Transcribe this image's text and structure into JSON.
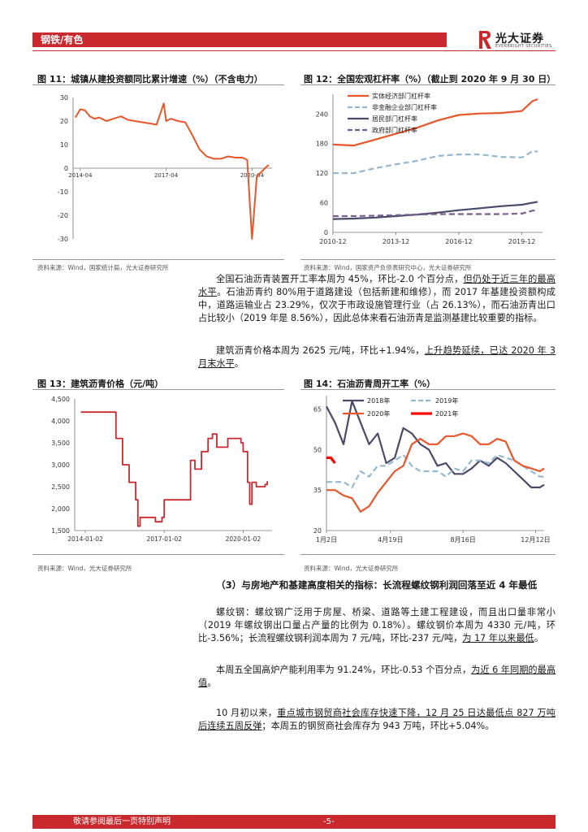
{
  "header": {
    "section_tag": "钢铁/有色",
    "logo_cn": "光大证券",
    "logo_en": "EVERBRIGHT SECURITIES",
    "accent_color": "#c9282d"
  },
  "fig11": {
    "title": "图 11：城镇从建投资额同比累计增速（%）（不含电力）",
    "source": "资料来源：Wind，国家统计局，光大证券研究所",
    "chart_data": {
      "type": "line",
      "xlabel": "",
      "ylabel": "",
      "ylim": [
        -30,
        30
      ],
      "yticks": [
        "30",
        "20",
        "10",
        "0",
        "-10",
        "-20",
        "-30"
      ],
      "xticks": [
        "2014-04",
        "2017-04",
        "2020-04"
      ],
      "grid": false,
      "series": [
        {
          "color": "#e8562a",
          "x": [
            "2014-02",
            "2014-04",
            "2014-06",
            "2014-08",
            "2014-10",
            "2014-12",
            "2015-03",
            "2015-06",
            "2015-09",
            "2015-12",
            "2016-03",
            "2016-06",
            "2016-09",
            "2016-12",
            "2017-03",
            "2017-04",
            "2017-06",
            "2017-09",
            "2017-12",
            "2018-03",
            "2018-06",
            "2018-09",
            "2018-12",
            "2019-03",
            "2019-06",
            "2019-09",
            "2019-12",
            "2020-02",
            "2020-04",
            "2020-06",
            "2020-08",
            "2020-10",
            "2020-11"
          ],
          "y": [
            21.5,
            25,
            24.5,
            22,
            21,
            21.5,
            20,
            21,
            22,
            20.5,
            20,
            19.5,
            19,
            18.5,
            27.5,
            20,
            21,
            20,
            19.5,
            14,
            8,
            5,
            4,
            4,
            5,
            4.5,
            4.5,
            3.5,
            -30,
            -3.5,
            -1.5,
            0.5,
            1.3
          ]
        }
      ]
    }
  },
  "fig12": {
    "title": "图 12：全国宏观杠杆率（%）（截止到 2020 年 9 月 30 日）",
    "source": "资料来源：Wind，国家资产负债表研究中心，光大证券研究所",
    "chart_data": {
      "type": "line",
      "ylim": [
        0,
        280
      ],
      "yticks": [
        "240",
        "180",
        "120",
        "60",
        "0"
      ],
      "xticks": [
        "2010-12",
        "2013-12",
        "2016-12",
        "2019-12"
      ],
      "legend_position": "top-left",
      "grid": false,
      "series": [
        {
          "name": "实体经济部门杠杆率",
          "color": "#e8562a",
          "dash": false,
          "x": [
            "2010-12",
            "2011-12",
            "2012-12",
            "2013-12",
            "2014-12",
            "2015-12",
            "2016-12",
            "2017-12",
            "2018-12",
            "2019-12",
            "2020-06",
            "2020-09"
          ],
          "y": [
            178,
            176,
            188,
            200,
            212,
            227,
            238,
            241,
            242,
            246,
            266,
            270
          ]
        },
        {
          "name": "非金融企业部门杠杆率",
          "color": "#95b8d0",
          "dash": true,
          "x": [
            "2010-12",
            "2011-12",
            "2012-12",
            "2013-12",
            "2014-12",
            "2015-12",
            "2016-12",
            "2017-12",
            "2018-12",
            "2019-12",
            "2020-06",
            "2020-09"
          ],
          "y": [
            120,
            120,
            130,
            138,
            145,
            155,
            158,
            158,
            153,
            152,
            164,
            164
          ]
        },
        {
          "name": "居民部门杠杆率",
          "color": "#4a4a6a",
          "dash": false,
          "x": [
            "2010-12",
            "2011-12",
            "2012-12",
            "2013-12",
            "2014-12",
            "2015-12",
            "2016-12",
            "2017-12",
            "2018-12",
            "2019-12",
            "2020-06",
            "2020-09"
          ],
          "y": [
            27,
            28,
            30,
            33,
            36,
            40,
            45,
            49,
            53,
            56,
            60,
            62
          ]
        },
        {
          "name": "政府部门杠杆率",
          "color": "#7a5d8e",
          "dash": true,
          "x": [
            "2010-12",
            "2011-12",
            "2012-12",
            "2013-12",
            "2014-12",
            "2015-12",
            "2016-12",
            "2017-12",
            "2018-12",
            "2019-12",
            "2020-06",
            "2020-09"
          ],
          "y": [
            33,
            33,
            34,
            35,
            36,
            37,
            37,
            37,
            37,
            38,
            44,
            45
          ]
        }
      ]
    }
  },
  "para1": {
    "t1": "全国石油沥青装置开工率本周为 45%，环比-2.0 个百分点，",
    "t1u": "但仍处于近三年的最高水平",
    "t2": "。石油沥青约 80%用于道路建设（包括新建和维修），而 2017 年基建投资额构成中，道路运输业占 23.29%，仅次于市政设施管理行业（占 26.13%），而石油沥青出口占比较小（2019 年是 8.56%），因此总体来看石油沥青是监测基建比较重要的指标。"
  },
  "para2": {
    "t1": "建筑沥青价格本周为 2625 元/吨，环比+1.94%，",
    "t1u": "上升趋势延续，已达 2020 年 3 月末水平",
    "t2": "。"
  },
  "fig13": {
    "title": "图 13：建筑沥青价格（元/吨）",
    "source": "资料来源：Wind，光大证券研究所",
    "chart_data": {
      "type": "line",
      "ylim": [
        1500,
        4500
      ],
      "yticks": [
        "4,500",
        "4,000",
        "3,500",
        "3,000",
        "2,500",
        "2,000",
        "1,500"
      ],
      "xticks": [
        "2014-01-02",
        "2017-01-02",
        "2020-01-02"
      ],
      "grid": false,
      "series": [
        {
          "color": "#c9282d",
          "x": [
            "2013-11",
            "2014-06",
            "2014-12",
            "2015-03",
            "2015-06",
            "2015-09",
            "2015-12",
            "2016-01",
            "2016-02",
            "2016-06",
            "2016-09",
            "2016-12",
            "2017-01",
            "2017-01",
            "2017-06",
            "2017-12",
            "2018-01",
            "2018-03",
            "2018-06",
            "2018-09",
            "2018-11",
            "2019-01",
            "2019-06",
            "2019-12",
            "2020-01",
            "2020-03",
            "2020-04",
            "2020-05",
            "2020-07",
            "2020-09",
            "2020-11",
            "2020-12"
          ],
          "y": [
            4200,
            4200,
            4200,
            3600,
            3000,
            2600,
            2200,
            1600,
            1800,
            1800,
            1700,
            1800,
            1800,
            2200,
            2200,
            2200,
            3100,
            2900,
            3300,
            3600,
            3700,
            3400,
            3600,
            3500,
            3300,
            2600,
            2100,
            2600,
            2500,
            2500,
            2550,
            2625
          ]
        }
      ]
    }
  },
  "fig14": {
    "title": "图 14：石油沥青周开工率（%）",
    "source": "资料来源：Wind，光大证券研究所",
    "chart_data": {
      "type": "line",
      "ylim": [
        20,
        70
      ],
      "yticks": [
        "65",
        "50",
        "35",
        "20"
      ],
      "xticks": [
        "1月2日",
        "4月19日",
        "8月16日",
        "12月12日"
      ],
      "legend_position": "top",
      "grid": false,
      "series": [
        {
          "name": "2018年",
          "color": "#4a4a6a",
          "dash": false,
          "x": [
            1,
            3,
            5,
            7,
            9,
            11,
            13,
            15,
            17,
            19,
            21,
            23,
            25,
            27,
            29,
            31,
            33,
            35,
            37,
            39,
            41,
            43,
            45,
            47,
            49,
            51,
            52
          ],
          "y": [
            66,
            60,
            52,
            68,
            60,
            52,
            56,
            45,
            47,
            58,
            56,
            52,
            50,
            44,
            45,
            41,
            41,
            43,
            46,
            44,
            47,
            45,
            42,
            39,
            36,
            36,
            37
          ]
        },
        {
          "name": "2019年",
          "color": "#95b8d0",
          "dash": true,
          "x": [
            1,
            3,
            5,
            7,
            9,
            11,
            13,
            15,
            17,
            19,
            21,
            23,
            25,
            27,
            29,
            31,
            33,
            35,
            37,
            39,
            41,
            43,
            45,
            47,
            49,
            51,
            52
          ],
          "y": [
            38,
            38,
            38,
            36,
            42,
            40,
            44,
            44,
            46,
            48,
            44,
            42,
            42,
            42,
            40,
            43,
            42,
            46,
            46,
            45,
            48,
            47,
            46,
            44,
            42,
            40,
            40
          ]
        },
        {
          "name": "2020年",
          "color": "#e8562a",
          "dash": false,
          "x": [
            1,
            3,
            5,
            7,
            9,
            11,
            13,
            15,
            17,
            19,
            21,
            23,
            25,
            27,
            29,
            31,
            33,
            35,
            37,
            39,
            41,
            43,
            45,
            47,
            49,
            51,
            52
          ],
          "y": [
            35,
            35,
            33,
            32,
            27,
            29,
            34,
            38,
            42,
            44,
            52,
            54,
            52,
            52,
            55,
            55,
            56,
            55,
            52,
            52,
            54,
            53,
            46,
            44,
            43,
            42,
            43
          ]
        },
        {
          "name": "2021年",
          "color": "#ff0000",
          "dash": false,
          "x": [
            1,
            2,
            3
          ],
          "y": [
            47,
            47,
            45
          ]
        }
      ]
    }
  },
  "section3": {
    "heading": "（3）与房地产和基建高度相关的指标：长流程螺纹钢利润回落至近 4 年最低"
  },
  "para3": {
    "t1": "螺纹钢：螺纹钢广泛用于房屋、桥梁、道路等土建工程建设，而且出口量非常小（2019 年螺纹钢出口量占产量的比例为 0.18%）。螺纹钢价本周为 4330 元/吨，环比-3.56%；长流程螺纹钢利润本周为 7 元/吨，环比-237 元/吨，",
    "t1u": "为 17 年以来最低",
    "t2": "。"
  },
  "para4": {
    "t1": "本周五全国高炉产能利用率为 91.24%，环比-0.53 个百分点，",
    "t1u": "为近 6 年同期的最高值",
    "t2": "。"
  },
  "para5": {
    "t1": "10 月初以来，",
    "t1u": "重点城市钢贸商社会库存快速下降，12 月 25 日达最低点 827 万吨后连续五周反弹",
    "t2": "；本周五的钢贸商社会库存为 943 万吨，环比+5.04%。"
  },
  "footer": {
    "notice": "敬请参阅最后一页特别声明",
    "page": "-5-"
  }
}
